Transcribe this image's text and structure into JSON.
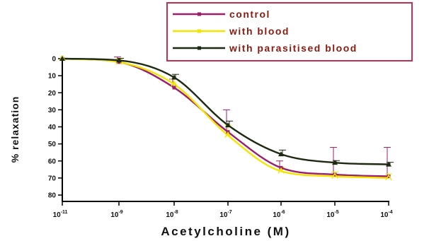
{
  "chart_data": {
    "type": "line",
    "title": "",
    "xlabel": "Acetylcholine (M)",
    "ylabel": "% relaxation",
    "x_scale": "log",
    "xlim": [
      "10^-11",
      "10^-4"
    ],
    "ylim": [
      0,
      80
    ],
    "y_inverted": true,
    "y_ticks": [
      "0",
      "10",
      "20",
      "30",
      "40",
      "50",
      "60",
      "70",
      "80"
    ],
    "x_ticks": [
      {
        "base": "10",
        "exp": "-11"
      },
      {
        "base": "10",
        "exp": "-9"
      },
      {
        "base": "10",
        "exp": "-8"
      },
      {
        "base": "10",
        "exp": "-7"
      },
      {
        "base": "10",
        "exp": "-6"
      },
      {
        "base": "10",
        "exp": "-5"
      },
      {
        "base": "10",
        "exp": "-4"
      }
    ],
    "grid": false,
    "legend_position": "top-right",
    "x": [
      "10^-11",
      "10^-9",
      "10^-8",
      "10^-7",
      "10^-6",
      "10^-5",
      "10^-4"
    ],
    "series": [
      {
        "name": "control",
        "color": "#9b1f6b",
        "values": [
          0,
          2,
          17,
          43,
          64,
          68,
          69
        ],
        "errors": [
          0,
          3,
          5,
          13,
          4,
          16,
          17
        ]
      },
      {
        "name": "with blood",
        "color": "#f2e600",
        "values": [
          0,
          2,
          15,
          45,
          66,
          69,
          70
        ],
        "errors": [
          0,
          3,
          5,
          10,
          4,
          4,
          4
        ]
      },
      {
        "name": "with parasitised blood",
        "color": "#1d2a12",
        "values": [
          0,
          1,
          11,
          39,
          56,
          61,
          62
        ],
        "errors": [
          0,
          2,
          3,
          4,
          4,
          2,
          2
        ]
      }
    ]
  }
}
